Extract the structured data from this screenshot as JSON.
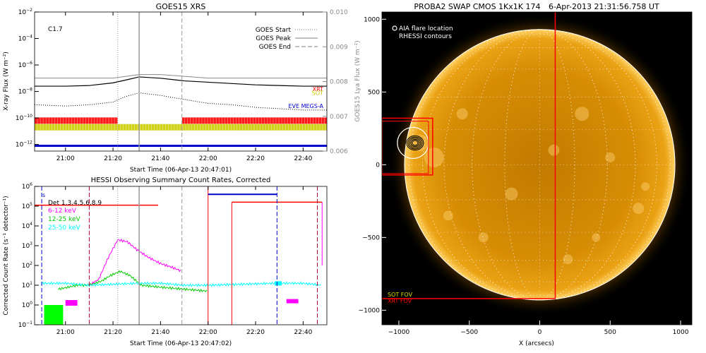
{
  "chart_data": [
    {
      "type": "line",
      "title": "GOES15 XRS",
      "xlabel": "Start Time (06-Apr-13 20:47:01)",
      "ylabel": "X-ray Flux (W m⁻²)",
      "ylabel_right": "GOES15 Lya Flux (W m⁻²)",
      "flare_class": "C1.7",
      "x_ticks": [
        "21:00",
        "21:20",
        "21:40",
        "22:00",
        "22:20",
        "22:40"
      ],
      "y_ticks_log": [
        -2,
        -4,
        -6,
        -8,
        -10,
        -12
      ],
      "y_ticks_right": [
        "0.010",
        "0.009",
        "0.008",
        "0.007",
        "0.006"
      ],
      "ylim_log": [
        -12.5,
        -2
      ],
      "ylim_right": [
        0.006,
        0.01
      ],
      "legend": [
        {
          "label": "GOES Start",
          "style": "dotted"
        },
        {
          "label": "GOES Peak",
          "style": "solid"
        },
        {
          "label": "GOES End",
          "style": "dashed"
        }
      ],
      "event_times": {
        "start": "21:22",
        "peak": "21:31",
        "end": "21:49"
      },
      "series": [
        {
          "name": "long",
          "color": "#000000",
          "x": [
            "20:47",
            "21:00",
            "21:10",
            "21:20",
            "21:25",
            "21:31",
            "21:40",
            "21:50",
            "22:00",
            "22:10",
            "22:20",
            "22:30",
            "22:40",
            "22:50"
          ],
          "log_flux": [
            -7.6,
            -7.6,
            -7.55,
            -7.35,
            -7.15,
            -6.9,
            -7.0,
            -7.2,
            -7.3,
            -7.4,
            -7.5,
            -7.55,
            -7.6,
            -7.6
          ]
        },
        {
          "name": "lya",
          "color": "#888888",
          "x": [
            "20:47",
            "21:00",
            "21:20",
            "21:31",
            "21:40",
            "22:00",
            "22:20",
            "22:50"
          ],
          "lya_flux": [
            0.0081,
            0.0081,
            0.0081,
            0.0082,
            0.0082,
            0.0081,
            0.0081,
            0.0081
          ]
        },
        {
          "name": "short",
          "color": "#000000",
          "style": "dotted",
          "x": [
            "20:47",
            "21:00",
            "21:10",
            "21:20",
            "21:25",
            "21:31",
            "21:40",
            "21:50",
            "22:00",
            "22:10",
            "22:20",
            "22:30",
            "22:40",
            "22:50"
          ],
          "log_flux": [
            -9.0,
            -9.1,
            -9.0,
            -8.8,
            -8.4,
            -8.1,
            -8.3,
            -8.6,
            -8.9,
            -9.0,
            -9.2,
            -9.3,
            -9.4,
            -9.4
          ]
        }
      ],
      "coverage_bars": [
        {
          "name": "XRT",
          "color": "#ff0000",
          "log_level": -10.2,
          "segments": [
            [
              "20:47",
              "21:22"
            ],
            [
              "21:49",
              "22:50"
            ]
          ]
        },
        {
          "name": "SOT",
          "color": "#cccc00",
          "log_level": -10.7,
          "segments": [
            [
              "20:47",
              "22:50"
            ]
          ]
        },
        {
          "name": "EVE MEGS-A",
          "color": "#0000cc",
          "log_level": -12.1,
          "segments": [
            [
              "20:47",
              "22:50"
            ]
          ]
        }
      ]
    },
    {
      "type": "line",
      "title": "HESSI Observing Summary Count Rates, Corrected",
      "xlabel": "Start Time (06-Apr-13 20:47:02)",
      "ylabel": "Corrected Count Rate (s⁻¹ detector⁻¹)",
      "x_ticks": [
        "21:00",
        "21:20",
        "21:40",
        "22:00",
        "22:20",
        "22:40"
      ],
      "y_ticks_log": [
        6,
        5,
        4,
        3,
        2,
        1,
        0,
        -1
      ],
      "ylim_log": [
        -1,
        6
      ],
      "detectors": "Det 1,3,4,5,6,8,9",
      "legend_marker": "s",
      "legend": [
        {
          "label": "6-12 keV",
          "color": "#ff00ff"
        },
        {
          "label": "12-25 keV",
          "color": "#00cc00"
        },
        {
          "label": "25-50 keV",
          "color": "#00ffff"
        }
      ],
      "series": [
        {
          "name": "6-12 keV",
          "color": "#ff00ff",
          "x": [
            "21:10",
            "21:14",
            "21:18",
            "21:22",
            "21:26",
            "21:30",
            "21:35",
            "21:40",
            "21:45",
            "21:49"
          ],
          "log_rate": [
            1.0,
            1.3,
            2.4,
            3.3,
            3.2,
            2.8,
            2.4,
            2.1,
            1.9,
            1.7
          ]
        },
        {
          "name": "12-25 keV",
          "color": "#00cc00",
          "x": [
            "20:57",
            "21:05",
            "21:10",
            "21:15",
            "21:19",
            "21:23",
            "21:27",
            "21:32",
            "21:40",
            "21:50",
            "22:00"
          ],
          "log_rate": [
            0.8,
            1.0,
            1.0,
            1.2,
            1.5,
            1.7,
            1.5,
            1.0,
            0.9,
            0.8,
            0.7
          ]
        },
        {
          "name": "25-50 keV",
          "color": "#00ffff",
          "x": [
            "20:50",
            "21:00",
            "21:10",
            "21:20",
            "21:30",
            "21:40",
            "21:50",
            "22:00",
            "22:28",
            "22:40",
            "22:48"
          ],
          "log_rate": [
            1.1,
            1.1,
            1.0,
            1.05,
            1.1,
            1.1,
            1.0,
            1.0,
            1.1,
            1.1,
            1.0
          ]
        }
      ],
      "attenuator": {
        "color": "#ff0000",
        "segments": [
          [
            "20:47",
            "21:39",
            5.05
          ],
          [
            "22:10",
            "22:48",
            5.2
          ]
        ]
      },
      "blue_flag": {
        "color": "#0000cc",
        "segments": [
          [
            "22:00",
            "22:29",
            5.6
          ]
        ]
      }
    },
    {
      "type": "image",
      "title": "PROBA2 SWAP CMOS 1Kx1K 174",
      "timestamp": "6-Apr-2013 21:31:56.758 UT",
      "xlabel": "X (arcsecs)",
      "x_ticks": [
        -1000,
        -500,
        0,
        500,
        1000
      ],
      "y_ticks": [
        1000,
        500,
        0,
        -500,
        -1000
      ],
      "xlim": [
        -1120,
        1080
      ],
      "ylim": [
        -1100,
        1050
      ],
      "legend": [
        {
          "label": "AIA flare location"
        },
        {
          "label": "RHESSI contours"
        }
      ],
      "fov_labels": [
        {
          "label": "SOT FOV",
          "color": "#dddd00"
        },
        {
          "label": "XRT FOV",
          "color": "#ff0000"
        }
      ],
      "flare_location": [
        -900,
        150
      ],
      "solar_radius": 960
    }
  ]
}
